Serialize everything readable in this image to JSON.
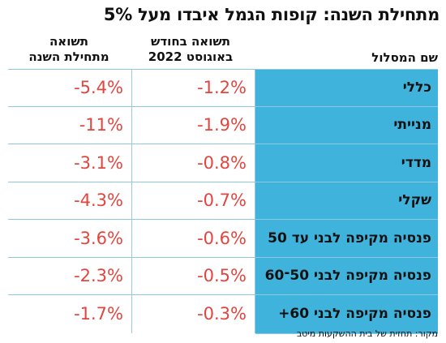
{
  "title_text": "מתחילת השנה: קופות הגמל איבדו מעל",
  "title_pct": "5%",
  "headers": {
    "name": "שם המסלול",
    "aug_line1": "תשואה בחודש",
    "aug_line2": "באוגוסט 2022",
    "ytd_line1": "תשואה",
    "ytd_line2": "מתחילת השנה"
  },
  "source": "מקור: תחזית של בית ההשקעות מיטב",
  "chart_data": {
    "type": "table",
    "title": "מתחילת השנה: קופות הגמל איבדו מעל 5%",
    "columns": [
      "שם המסלול",
      "תשואה בחודש באוגוסט 2022",
      "תשואה מתחילת השנה"
    ],
    "rows": [
      {
        "name": "כללי",
        "aug": "-1.2%",
        "ytd": "-5.4%"
      },
      {
        "name": "מנייתי",
        "aug": "-1.9%",
        "ytd": "-11%"
      },
      {
        "name": "מדדי",
        "aug": "-0.8%",
        "ytd": "-3.1%"
      },
      {
        "name": "שקלי",
        "aug": "-0.7%",
        "ytd": "-4.3%"
      },
      {
        "name": "פנסיה מקיפה לבני עד 50",
        "aug": "-0.6%",
        "ytd": "-3.6%"
      },
      {
        "name": "פנסיה מקיפה לבני 50־60",
        "aug": "-0.5%",
        "ytd": "-2.3%"
      },
      {
        "name": "פנסיה מקיפה לבני 60+",
        "aug": "-0.3%",
        "ytd": "-1.7%"
      }
    ],
    "aug_values": [
      -1.2,
      -1.9,
      -0.8,
      -0.7,
      -0.6,
      -0.5,
      -0.3
    ],
    "ytd_values": [
      -5.4,
      -11,
      -3.1,
      -4.3,
      -3.6,
      -2.3,
      -1.7
    ],
    "unit": "%"
  },
  "colors": {
    "name_bg": "#3fb3dc",
    "value_text": "#e0463f",
    "divider": "#8ec8de"
  }
}
